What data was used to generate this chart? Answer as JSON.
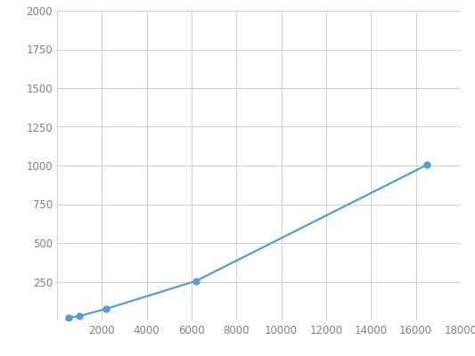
{
  "x": [
    500,
    1000,
    2200,
    6200,
    16500
  ],
  "y": [
    18,
    28,
    75,
    255,
    1005
  ],
  "line_color": "#5B9BD5",
  "marker_color": "#5B9BD5",
  "marker_size": 5,
  "line_width": 1.6,
  "xlim": [
    0,
    18000
  ],
  "ylim": [
    0,
    2000
  ],
  "xticks": [
    0,
    2000,
    4000,
    6000,
    8000,
    10000,
    12000,
    14000,
    16000,
    18000
  ],
  "yticks": [
    0,
    250,
    500,
    750,
    1000,
    1250,
    1500,
    1750,
    2000
  ],
  "background_color": "#ffffff",
  "grid_color": "#d0d0d0",
  "tick_label_color": "#808080",
  "tick_label_size": 8.5
}
